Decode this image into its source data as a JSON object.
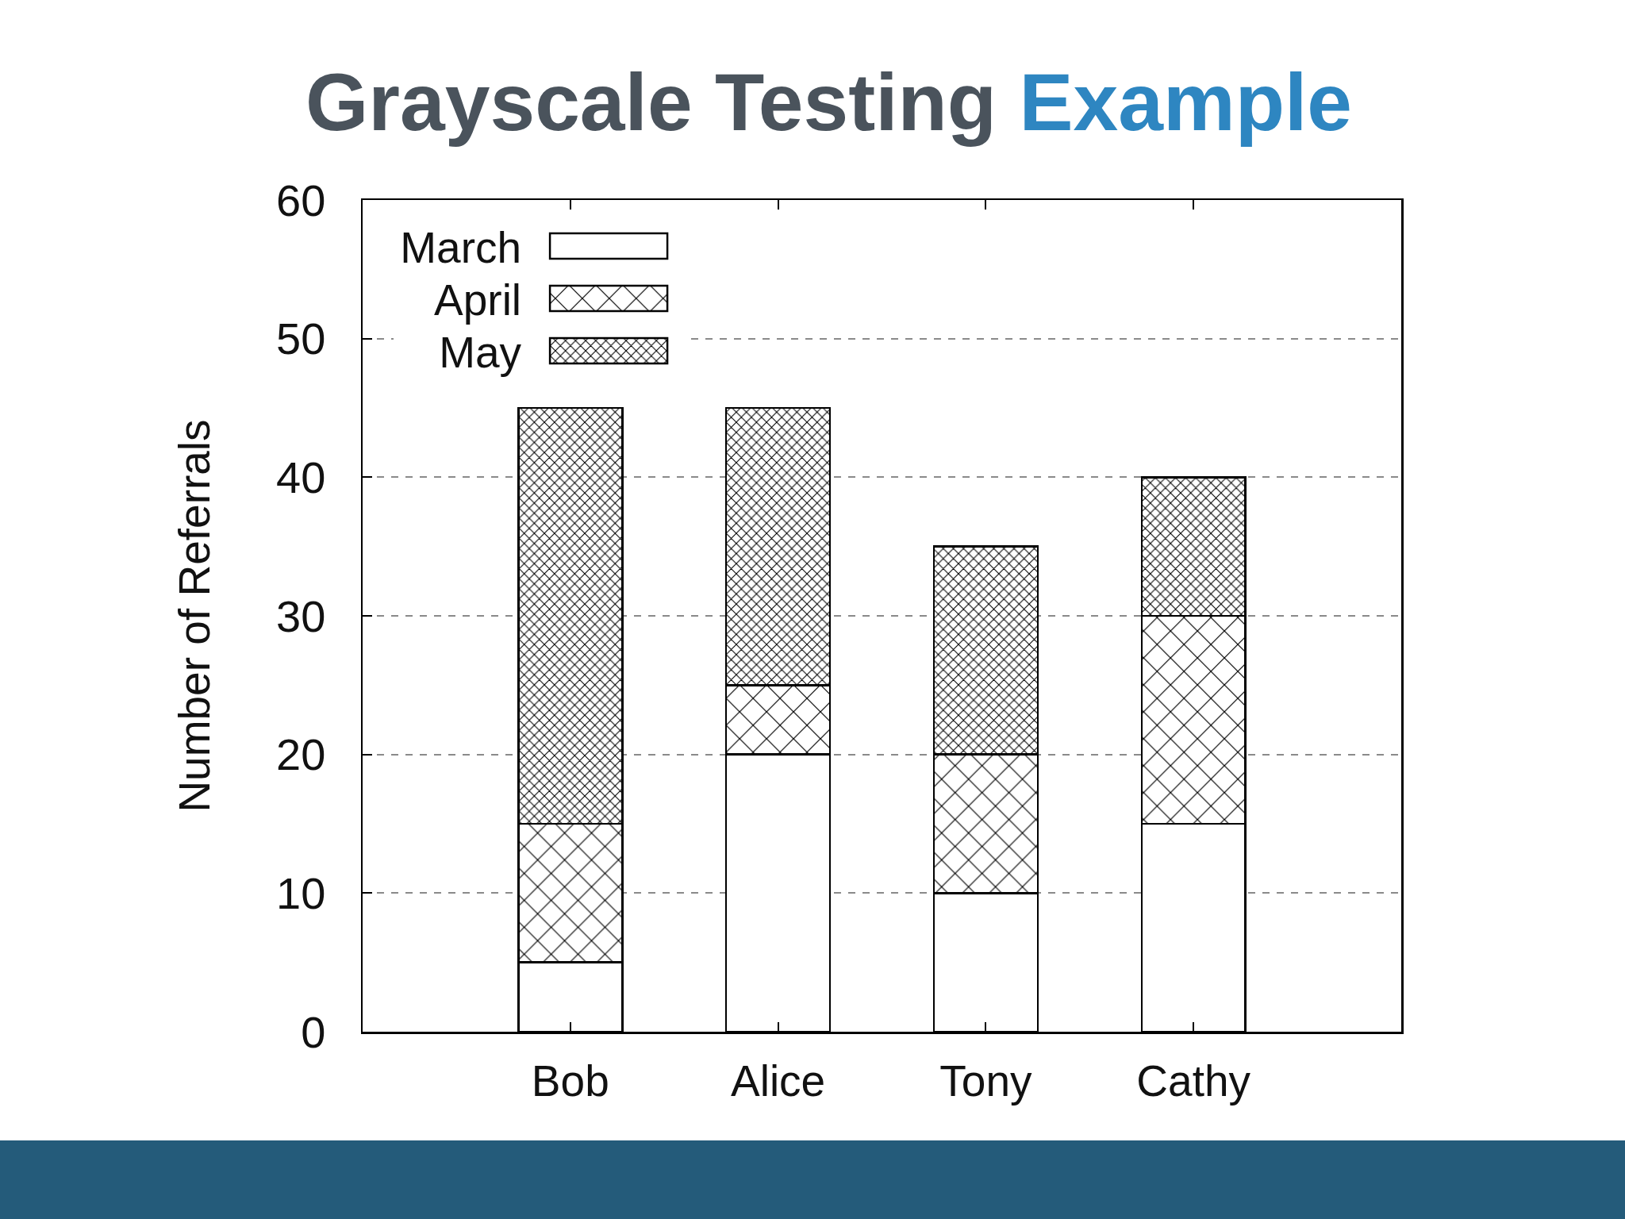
{
  "chart_data": {
    "type": "bar",
    "title": "Grayscale Testing Example",
    "ylabel": "Number of Referrals",
    "categories": [
      "Bob",
      "Alice",
      "Tony",
      "Cathy"
    ],
    "series": [
      {
        "name": "March",
        "color": "#ffffff",
        "values": [
          5,
          20,
          10,
          15
        ]
      },
      {
        "name": "April",
        "color": "#000000",
        "values": [
          10,
          5,
          10,
          15
        ]
      },
      {
        "name": "May",
        "color": "#000000",
        "values": [
          30,
          20,
          15,
          10
        ]
      }
    ],
    "stacked": true,
    "ylim": [
      0,
      60
    ],
    "yticks": [
      0,
      10,
      20,
      30,
      40,
      50,
      60
    ],
    "grid": "y",
    "legend": "top left"
  }
}
